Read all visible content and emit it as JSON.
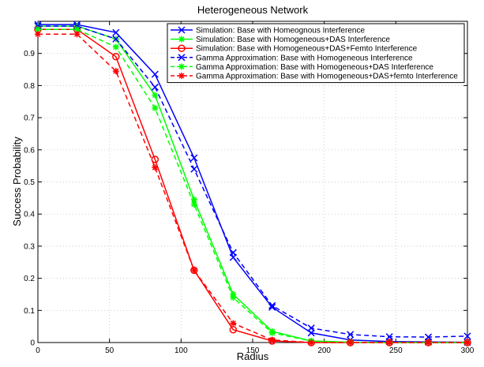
{
  "chart_data": {
    "type": "line",
    "title": "Heterogeneous Network",
    "xlabel": "Radius",
    "ylabel": "Success Probability",
    "xlim": [
      0,
      300
    ],
    "ylim": [
      0,
      1
    ],
    "xticks": [
      0,
      50,
      100,
      150,
      200,
      250,
      300
    ],
    "yticks": [
      0,
      0.1,
      0.2,
      0.3,
      0.4,
      0.5,
      0.6,
      0.7,
      0.8,
      0.9
    ],
    "xtick_labels": [
      "0",
      "50",
      "100",
      "150",
      "200",
      "250",
      "300"
    ],
    "ytick_labels": [
      "0",
      "0.1",
      "0.2",
      "0.3",
      "0.4",
      "0.5",
      "0.6",
      "0.7",
      "0.8",
      "0.9"
    ],
    "grid": true,
    "legend_position": "top-right",
    "x": [
      0,
      27.3,
      54.5,
      81.8,
      109.1,
      136.4,
      163.6,
      190.9,
      218.2,
      245.5,
      272.7,
      300
    ],
    "series": [
      {
        "name": "Simulation: Base with Homeognous Interference",
        "color": "#0000ff",
        "dash": "solid",
        "marker": "x",
        "values": [
          0.99,
          0.99,
          0.965,
          0.835,
          0.575,
          0.265,
          0.11,
          0.03,
          0.008,
          0.003,
          0.002,
          0.001
        ]
      },
      {
        "name": "Simulation: Base with Homogeneous+DAS Interference",
        "color": "#00ff00",
        "dash": "solid",
        "marker": "star",
        "values": [
          0.985,
          0.985,
          0.945,
          0.77,
          0.445,
          0.15,
          0.035,
          0.005,
          0.001,
          0.0,
          0.0,
          0.0
        ]
      },
      {
        "name": "Simulation: Base with Homogeneous+DAS+Femto Interference",
        "color": "#ff0000",
        "dash": "solid",
        "marker": "circle",
        "values": [
          0.975,
          0.975,
          0.89,
          0.57,
          0.225,
          0.04,
          0.005,
          0.0,
          0.0,
          0.0,
          0.0,
          0.0
        ]
      },
      {
        "name": "Gamma Approximation: Base with Homogeneous Interference",
        "color": "#0000ff",
        "dash": "dashed",
        "marker": "x",
        "values": [
          0.985,
          0.985,
          0.945,
          0.795,
          0.54,
          0.28,
          0.115,
          0.045,
          0.025,
          0.018,
          0.017,
          0.02
        ]
      },
      {
        "name": "Gamma Approximation: Base with Homogeneous+DAS Interference",
        "color": "#00ff00",
        "dash": "dashed",
        "marker": "star",
        "values": [
          0.975,
          0.975,
          0.92,
          0.73,
          0.43,
          0.14,
          0.03,
          0.005,
          0.001,
          0.0,
          0.0,
          0.0
        ]
      },
      {
        "name": "Gamma Approximation: Base with Homogeneous+DAS+femto Interference",
        "color": "#ff0000",
        "dash": "dashed",
        "marker": "star",
        "values": [
          0.96,
          0.96,
          0.845,
          0.545,
          0.225,
          0.06,
          0.008,
          0.0,
          0.0,
          0.0,
          0.0,
          0.0
        ]
      }
    ]
  }
}
